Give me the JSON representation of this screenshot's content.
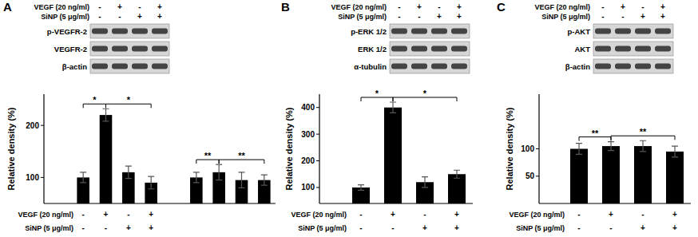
{
  "chart_data": [
    {
      "type": "bar",
      "y_label": "Relative density (%)",
      "categories": [
        null,
        null,
        null,
        null,
        null,
        null,
        null,
        null
      ],
      "values": [
        100,
        220,
        110,
        90,
        100,
        110,
        95,
        95
      ],
      "errors": [
        10,
        12,
        12,
        12,
        10,
        15,
        15,
        10
      ],
      "ylim": [
        50,
        260
      ],
      "yticks": [
        100,
        200
      ],
      "color": "#000000",
      "conditions": [
        {
          "label": "VEGF (20 ng/ml)",
          "marks": [
            "-",
            "+",
            "-",
            "+"
          ]
        },
        {
          "label": "SiNP (5 μg/ml)",
          "marks": [
            "-",
            "-",
            "+",
            "+"
          ]
        }
      ],
      "annotations": [
        {
          "text": "*",
          "from": 0,
          "to": 1
        },
        {
          "text": "*",
          "from": 1,
          "to": 3
        },
        {
          "text": "**",
          "from": 4,
          "to": 5
        },
        {
          "text": "**",
          "from": 5,
          "to": 7
        }
      ]
    },
    {
      "type": "bar",
      "y_label": "Relative density (%)",
      "categories": [
        null,
        null,
        null,
        null
      ],
      "values": [
        100,
        400,
        120,
        150
      ],
      "errors": [
        10,
        20,
        20,
        15
      ],
      "ylim": [
        40,
        450
      ],
      "yticks": [
        100,
        200,
        300,
        400
      ],
      "color": "#000000",
      "conditions": [
        {
          "label": "VEGF (20 ng/ml)",
          "marks": [
            "-",
            "+",
            "-",
            "+"
          ]
        },
        {
          "label": "SiNP (5 μg/ml)",
          "marks": [
            "-",
            "-",
            "+",
            "+"
          ]
        }
      ],
      "annotations": [
        {
          "text": "*",
          "from": 0,
          "to": 1
        },
        {
          "text": "*",
          "from": 1,
          "to": 3
        }
      ]
    },
    {
      "type": "bar",
      "y_label": "Relative density (%)",
      "categories": [
        null,
        null,
        null,
        null
      ],
      "values": [
        100,
        105,
        105,
        95
      ],
      "errors": [
        10,
        8,
        10,
        10
      ],
      "ylim": [
        0,
        200
      ],
      "yticks": [
        50,
        100
      ],
      "color": "#000000",
      "conditions": [
        {
          "label": "VEGF (20 ng/ml)",
          "marks": [
            "-",
            "+",
            "-",
            "+"
          ]
        },
        {
          "label": "SiNP (5 μg/ml)",
          "marks": [
            "-",
            "-",
            "+",
            "+"
          ]
        }
      ],
      "annotations": [
        {
          "text": "**",
          "from": 0,
          "to": 1
        },
        {
          "text": "**",
          "from": 1,
          "to": 3
        }
      ]
    }
  ],
  "panels": [
    {
      "label": "A",
      "treatments": [
        {
          "label": "VEGF (20 ng/ml)",
          "marks": [
            "-",
            "+",
            "-",
            "+"
          ]
        },
        {
          "label": "SiNP (5 μg/ml)",
          "marks": [
            "-",
            "-",
            "+",
            "+"
          ]
        }
      ],
      "blots": [
        "p-VEGFR-2",
        "VEGFR-2",
        "β-actin"
      ]
    },
    {
      "label": "B",
      "treatments": [
        {
          "label": "VEGF (20 ng/ml)",
          "marks": [
            "-",
            "+",
            "-",
            "+"
          ]
        },
        {
          "label": "SiNP (5 μg/ml)",
          "marks": [
            "-",
            "-",
            "+",
            "+"
          ]
        }
      ],
      "blots": [
        "p-ERK 1/2",
        "ERK 1/2",
        "α-tubulin"
      ]
    },
    {
      "label": "C",
      "treatments": [
        {
          "label": "VEGF (20 ng/ml)",
          "marks": [
            "-",
            "+",
            "-",
            "+"
          ]
        },
        {
          "label": "SiNP (5 μg/ml)",
          "marks": [
            "-",
            "-",
            "+",
            "+"
          ]
        }
      ],
      "blots": [
        "p-AKT",
        "AKT",
        "β-actin"
      ]
    }
  ]
}
